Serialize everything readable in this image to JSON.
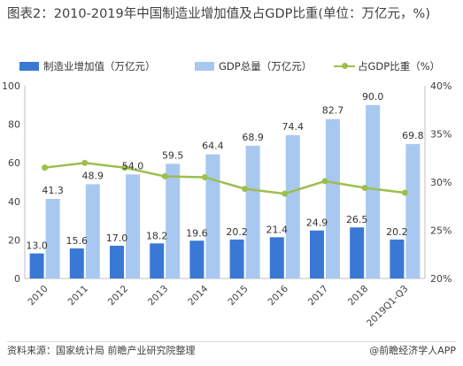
{
  "title": "图表2：2010-2019年中国制造业增加值及占GDP比重(单位：万亿元，%)",
  "footer": {
    "source": "资料来源：国家统计局 前瞻产业研究院整理",
    "brand": "@前瞻经济学人APP"
  },
  "colors": {
    "series_mfg": "#3a78d6",
    "series_gdp": "#a8c8f0",
    "series_ratio": "#9cbf4d"
  },
  "chart_data": {
    "type": "bar",
    "categories": [
      "2010",
      "2011",
      "2012",
      "2013",
      "2014",
      "2015",
      "2016",
      "2017",
      "2018",
      "2019Q1-Q3"
    ],
    "series": [
      {
        "name": "制造业增加值（万亿元）",
        "type": "bar",
        "axis": "left",
        "values": [
          13.0,
          15.6,
          17.0,
          18.2,
          19.6,
          20.2,
          21.4,
          24.9,
          26.5,
          20.2
        ],
        "labels": [
          "13.0",
          "15.6",
          "17.0",
          "18.2",
          "19.6",
          "20.2",
          "21.4",
          "24.9",
          "26.5",
          "20.2"
        ]
      },
      {
        "name": "GDP总量（万亿元）",
        "type": "bar",
        "axis": "left",
        "values": [
          41.3,
          48.9,
          54.0,
          59.5,
          64.4,
          68.9,
          74.4,
          82.7,
          90.0,
          69.8
        ],
        "labels": [
          "41.3",
          "48.9",
          "54.0",
          "59.5",
          "64.4",
          "68.9",
          "74.4",
          "82.7",
          "90.0",
          "69.8"
        ]
      },
      {
        "name": "占GDP比重（%）",
        "type": "line",
        "axis": "right",
        "values": [
          31.5,
          32.0,
          31.5,
          30.6,
          30.5,
          29.3,
          28.8,
          30.1,
          29.4,
          28.9
        ]
      }
    ],
    "y_left": {
      "min": 0,
      "max": 100,
      "ticks": [
        "0",
        "20",
        "40",
        "60",
        "80",
        "100"
      ]
    },
    "y_right": {
      "min": 20,
      "max": 40,
      "ticks": [
        "20%",
        "25%",
        "30%",
        "35%",
        "40%"
      ]
    },
    "grid": false,
    "legend_position": "top"
  }
}
